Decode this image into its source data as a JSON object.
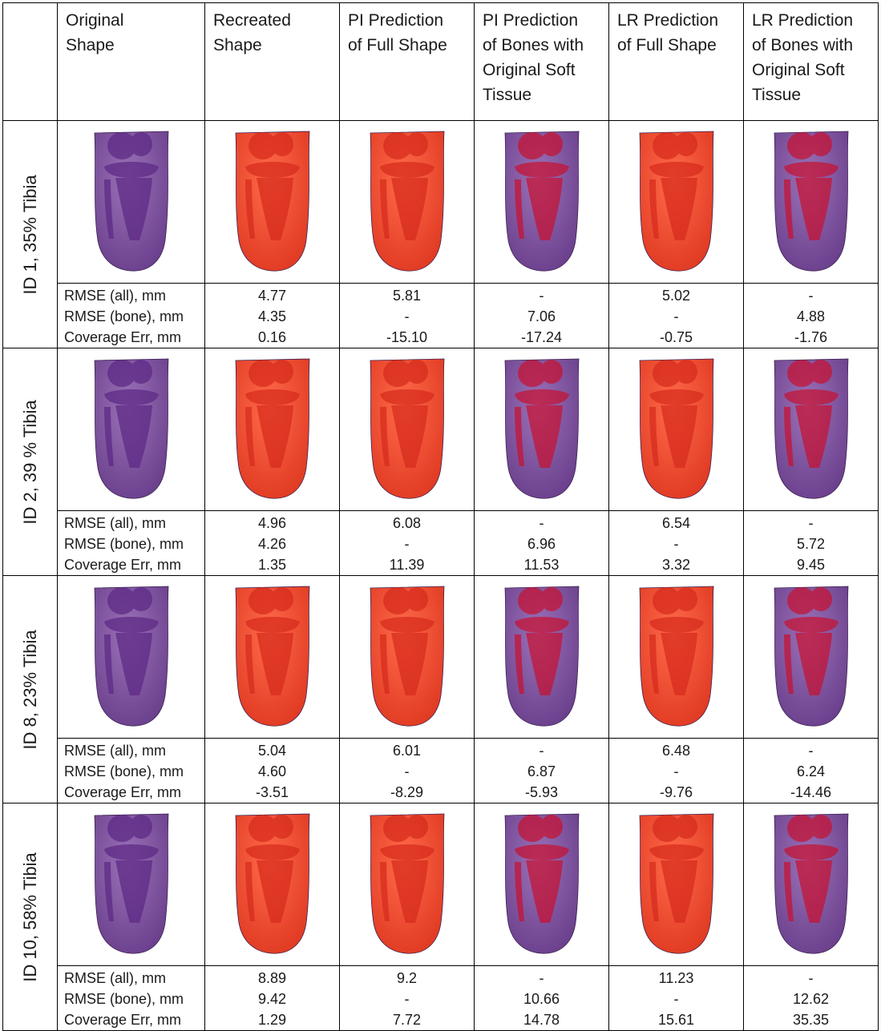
{
  "columns": [
    {
      "id": "original",
      "header": [
        "Original",
        "Shape"
      ]
    },
    {
      "id": "recreated",
      "header": [
        "Recreated",
        "Shape"
      ]
    },
    {
      "id": "pi_full",
      "header": [
        "PI Prediction",
        "of Full Shape"
      ]
    },
    {
      "id": "pi_bones",
      "header": [
        "PI Prediction",
        "of Bones with",
        "Original Soft",
        "Tissue"
      ]
    },
    {
      "id": "lr_full",
      "header": [
        "LR Prediction",
        "of Full Shape"
      ]
    },
    {
      "id": "lr_bones",
      "header": [
        "LR Prediction",
        "of Bones with",
        "Original Soft",
        "Tissue"
      ]
    }
  ],
  "metric_labels": [
    "RMSE (all), mm",
    "RMSE (bone), mm",
    "Coverage Err, mm"
  ],
  "colors": {
    "purple": "#7b4a9c",
    "red_orange": "#e8452a",
    "dark_purple": "#5e2a86",
    "red": "#c8102e"
  },
  "rows": [
    {
      "label": "ID 1, 35% Tibia",
      "metrics": [
        [
          "4.77",
          "4.35",
          "0.16"
        ],
        [
          "5.81",
          "-",
          "-15.10"
        ],
        [
          "-",
          "7.06",
          "-17.24"
        ],
        [
          "5.02",
          "-",
          "-0.75"
        ],
        [
          "-",
          "4.88",
          "-1.76"
        ]
      ]
    },
    {
      "label": "ID 2, 39 % Tibia",
      "metrics": [
        [
          "4.96",
          "4.26",
          "1.35"
        ],
        [
          "6.08",
          "-",
          "11.39"
        ],
        [
          "-",
          "6.96",
          "11.53"
        ],
        [
          "6.54",
          "-",
          "3.32"
        ],
        [
          "-",
          "5.72",
          "9.45"
        ]
      ]
    },
    {
      "label": "ID 8, 23% Tibia",
      "metrics": [
        [
          "5.04",
          "4.60",
          "-3.51"
        ],
        [
          "6.01",
          "-",
          "-8.29"
        ],
        [
          "-",
          "6.87",
          "-5.93"
        ],
        [
          "6.48",
          "-",
          "-9.76"
        ],
        [
          "-",
          "6.24",
          "-14.46"
        ]
      ]
    },
    {
      "label": "ID 10, 58% Tibia",
      "metrics": [
        [
          "8.89",
          "9.42",
          "1.29"
        ],
        [
          "9.2",
          "-",
          "7.72"
        ],
        [
          "-",
          "10.66",
          "14.78"
        ],
        [
          "11.23",
          "-",
          "15.61"
        ],
        [
          "-",
          "12.62",
          "35.35"
        ]
      ]
    }
  ]
}
